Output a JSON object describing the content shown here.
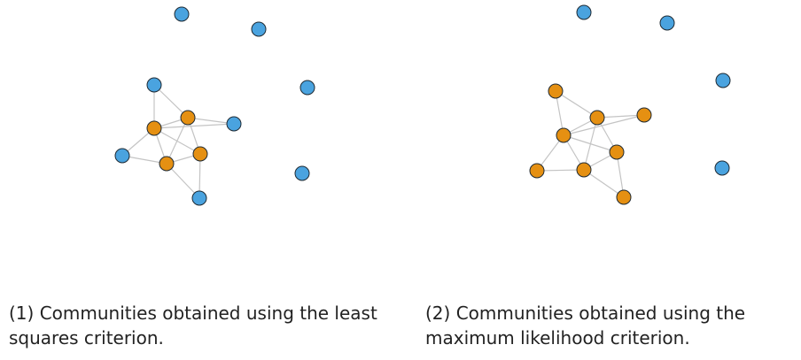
{
  "colors": {
    "community": "#E59012",
    "other": "#4AA3DF",
    "edge": "#C4C4C4",
    "node_outline": "#1F2A33"
  },
  "panels": [
    {
      "id": "left",
      "caption": "(1) Communities obtained using the least squares criterion.",
      "nodes": [
        {
          "id": "a",
          "group": "other"
        },
        {
          "id": "b",
          "group": "other"
        },
        {
          "id": "c",
          "group": "other"
        },
        {
          "id": "d",
          "group": "other"
        },
        {
          "id": "e",
          "group": "other"
        },
        {
          "id": "f",
          "group": "other"
        },
        {
          "id": "g",
          "group": "other"
        },
        {
          "id": "h",
          "group": "other"
        },
        {
          "id": "i",
          "group": "community"
        },
        {
          "id": "j",
          "group": "community"
        },
        {
          "id": "k",
          "group": "community"
        },
        {
          "id": "l",
          "group": "community"
        }
      ],
      "edges": [
        [
          "d",
          "i"
        ],
        [
          "d",
          "j"
        ],
        [
          "i",
          "j"
        ],
        [
          "j",
          "e"
        ],
        [
          "i",
          "e"
        ],
        [
          "i",
          "k"
        ],
        [
          "j",
          "k"
        ],
        [
          "j",
          "l"
        ],
        [
          "i",
          "l"
        ],
        [
          "f",
          "i"
        ],
        [
          "f",
          "k"
        ],
        [
          "k",
          "l"
        ],
        [
          "k",
          "g"
        ],
        [
          "l",
          "g"
        ]
      ]
    },
    {
      "id": "right",
      "caption": "(2) Communities obtained using the maximum likelihood criterion.",
      "nodes": [
        {
          "id": "a",
          "group": "other"
        },
        {
          "id": "b",
          "group": "other"
        },
        {
          "id": "c",
          "group": "other"
        },
        {
          "id": "h",
          "group": "other"
        },
        {
          "id": "d",
          "group": "community"
        },
        {
          "id": "e",
          "group": "community"
        },
        {
          "id": "f",
          "group": "community"
        },
        {
          "id": "g",
          "group": "community"
        },
        {
          "id": "i",
          "group": "community"
        },
        {
          "id": "j",
          "group": "community"
        },
        {
          "id": "k",
          "group": "community"
        },
        {
          "id": "l",
          "group": "community"
        }
      ],
      "edges": [
        [
          "d",
          "i"
        ],
        [
          "d",
          "j"
        ],
        [
          "i",
          "j"
        ],
        [
          "j",
          "e"
        ],
        [
          "i",
          "e"
        ],
        [
          "i",
          "k"
        ],
        [
          "j",
          "k"
        ],
        [
          "j",
          "l"
        ],
        [
          "i",
          "l"
        ],
        [
          "f",
          "i"
        ],
        [
          "f",
          "k"
        ],
        [
          "k",
          "l"
        ],
        [
          "k",
          "g"
        ],
        [
          "l",
          "g"
        ]
      ]
    }
  ]
}
